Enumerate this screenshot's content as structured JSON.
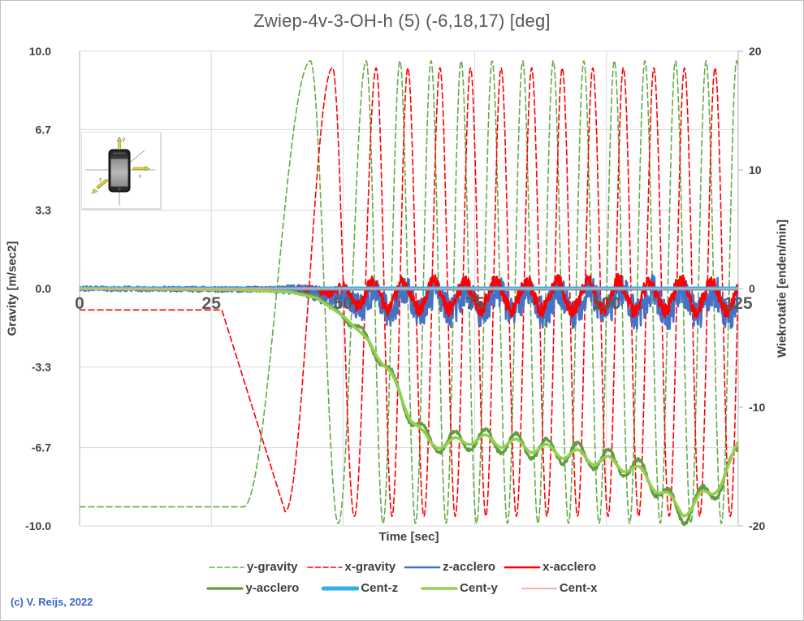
{
  "copyright": "(c) V. Reijs, 2022",
  "inset_icon": {
    "name": "phone-orientation-diagram",
    "axis_labels": {
      "x": "x",
      "y": "y",
      "z": "z"
    }
  },
  "chart_data": {
    "type": "line",
    "title": "Zwiep-4v-3-OH-h (5) (-6,18,17) [deg]",
    "xlabel": "Time [sec]",
    "ylabel_left": "Gravity [m/sec2]",
    "ylabel_right": "Wiekrotatie [enden/min]",
    "xlim": [
      0,
      125
    ],
    "ylim_left": [
      -10,
      10
    ],
    "ylim_right": [
      -20,
      20
    ],
    "grid": true,
    "legend_position": "bottom",
    "colors": {
      "grid": "#d9d9d9",
      "axis_line": "#bfbfbf",
      "tick_text": "#404040",
      "xtick_text": "#595959",
      "title_text": "#595959"
    },
    "x_ticks": [
      {
        "v": 0,
        "label": "0"
      },
      {
        "v": 25,
        "label": "25"
      },
      {
        "v": 50,
        "label": "50"
      },
      {
        "v": 75,
        "label": "75"
      },
      {
        "v": 100,
        "label": "100"
      },
      {
        "v": 125,
        "label": "125"
      }
    ],
    "left_ticks": [
      {
        "v": 10,
        "label": "10.0"
      },
      {
        "v": 6.7,
        "label": "6.7"
      },
      {
        "v": 3.3,
        "label": "3.3"
      },
      {
        "v": 0,
        "label": "0.0"
      },
      {
        "v": -3.3,
        "label": "-3.3"
      },
      {
        "v": -6.7,
        "label": "-6.7"
      },
      {
        "v": -10,
        "label": "-10.0"
      }
    ],
    "right_ticks": [
      {
        "v": 20,
        "label": "20"
      },
      {
        "v": 10,
        "label": "10"
      },
      {
        "v": 0,
        "label": "0"
      },
      {
        "v": -10,
        "label": "-10"
      },
      {
        "v": -20,
        "label": "-20"
      }
    ],
    "series": [
      {
        "name": "y-gravity",
        "axis": "left",
        "color": "#66ab45",
        "width": 1.6,
        "dash": "7 4",
        "dt": 0.12,
        "seed": 11,
        "base": [
          [
            0,
            -0.15
          ],
          [
            125,
            -0.15
          ]
        ],
        "osc": {
          "amp": [
            [
              0,
              9.05
            ],
            [
              31,
              9.05
            ],
            [
              43.8,
              9.75
            ],
            [
              125,
              9.75
            ]
          ],
          "phase": [
            [
              0,
              0.5
            ],
            [
              31,
              0.5
            ],
            [
              43.8,
              1
            ],
            [
              54.4,
              2
            ],
            [
              60.8,
              3
            ],
            [
              66.7,
              4
            ],
            [
              72.4,
              5
            ],
            [
              78.3,
              6
            ],
            [
              84.1,
              7
            ],
            [
              89.9,
              8
            ],
            [
              95.7,
              9
            ],
            [
              101.5,
              10
            ],
            [
              107.3,
              11
            ],
            [
              113.1,
              12
            ],
            [
              118.9,
              13
            ],
            [
              124.7,
              14
            ],
            [
              125,
              14.05
            ]
          ]
        }
      },
      {
        "name": "x-gravity",
        "axis": "left",
        "color": "#ff0000",
        "width": 1.6,
        "dash": "7 4",
        "dt": 0.12,
        "seed": 12,
        "base": [
          [
            0,
            -0.15
          ],
          [
            125,
            -0.15
          ]
        ],
        "osc": {
          "amp": [
            [
              0,
              0.75
            ],
            [
              27,
              0.75
            ],
            [
              39,
              9.25
            ],
            [
              48,
              9.45
            ],
            [
              125,
              9.45
            ]
          ],
          "phase": [
            [
              0,
              0.5
            ],
            [
              27,
              0.5
            ],
            [
              39,
              0.5
            ],
            [
              48,
              1
            ],
            [
              56.3,
              2
            ],
            [
              62.3,
              3
            ],
            [
              68.4,
              4
            ],
            [
              74.2,
              5
            ],
            [
              80,
              6
            ],
            [
              85.8,
              7
            ],
            [
              91.6,
              8
            ],
            [
              97.4,
              9
            ],
            [
              103.2,
              10
            ],
            [
              109,
              11
            ],
            [
              114.8,
              12
            ],
            [
              120.6,
              13
            ],
            [
              125,
              13.76
            ]
          ]
        }
      },
      {
        "name": "z-acclero",
        "axis": "left",
        "color": "#4472c4",
        "width": 2.6,
        "dt": 0.1,
        "seed": 23,
        "base": [
          [
            0,
            0
          ],
          [
            42,
            -0.05
          ],
          [
            48,
            -0.4
          ],
          [
            55,
            -0.55
          ],
          [
            125,
            -0.6
          ]
        ],
        "osc": {
          "amp": [
            [
              0,
              0
            ],
            [
              46,
              0
            ],
            [
              56,
              0.4
            ],
            [
              125,
              0.5
            ]
          ],
          "phase": [
            [
              46,
              0.3
            ],
            [
              125,
              13.8
            ]
          ]
        },
        "noise": [
          [
            0,
            0.1
          ],
          [
            35,
            0.12
          ],
          [
            42,
            0.22
          ],
          [
            50,
            0.5
          ],
          [
            58,
            0.65
          ],
          [
            125,
            0.72
          ]
        ]
      },
      {
        "name": "x-acclero",
        "axis": "left",
        "color": "#ff0000",
        "width": 2.6,
        "dt": 0.1,
        "seed": 37,
        "base": [
          [
            0,
            0
          ],
          [
            45,
            -0.05
          ],
          [
            52,
            -0.28
          ],
          [
            125,
            -0.33
          ]
        ],
        "osc": {
          "amp": [
            [
              0,
              0
            ],
            [
              46,
              0.05
            ],
            [
              54,
              0.55
            ],
            [
              125,
              0.65
            ]
          ],
          "phase": [
            [
              44,
              -0.98
            ],
            [
              125,
              12.87
            ]
          ]
        },
        "noise": [
          [
            0,
            0.05
          ],
          [
            40,
            0.08
          ],
          [
            50,
            0.22
          ],
          [
            58,
            0.3
          ],
          [
            125,
            0.33
          ]
        ]
      },
      {
        "name": "y-acclero",
        "axis": "left",
        "color": "#639b41",
        "width": 3.2,
        "dt": 0.15,
        "seed": 41,
        "base": [
          [
            0,
            0
          ],
          [
            30,
            -0.05
          ],
          [
            40,
            -0.1
          ],
          [
            45,
            -0.35
          ],
          [
            50,
            -1.1
          ],
          [
            53,
            -1.8
          ],
          [
            55,
            -2.25
          ],
          [
            57,
            -2.95
          ],
          [
            59,
            -3.65
          ],
          [
            61,
            -4.55
          ],
          [
            63,
            -5.45
          ],
          [
            65,
            -6.1
          ],
          [
            66.5,
            -6.45
          ],
          [
            70,
            -6.5
          ],
          [
            74,
            -6.35
          ],
          [
            78,
            -6.4
          ],
          [
            85,
            -6.65
          ],
          [
            90,
            -6.85
          ],
          [
            95,
            -7.0
          ],
          [
            100,
            -7.25
          ],
          [
            104,
            -7.45
          ],
          [
            107,
            -7.8
          ],
          [
            110,
            -8.4
          ],
          [
            113,
            -9.3
          ],
          [
            114.5,
            -9.5
          ],
          [
            116,
            -9.2
          ],
          [
            118,
            -8.85
          ],
          [
            120,
            -8.5
          ],
          [
            122,
            -8.1
          ],
          [
            123.5,
            -7.6
          ],
          [
            125,
            -6.9
          ]
        ],
        "osc": {
          "amp": [
            [
              0,
              0
            ],
            [
              48,
              0
            ],
            [
              52,
              0.22
            ],
            [
              58,
              0.3
            ],
            [
              64,
              0.38
            ],
            [
              70,
              0.45
            ],
            [
              125,
              0.5
            ]
          ],
          "phase": [
            [
              40,
              -6.325
            ],
            [
              125,
              8.205
            ]
          ]
        },
        "noise": [
          [
            0,
            0.03
          ],
          [
            45,
            0.06
          ],
          [
            125,
            0.08
          ]
        ]
      },
      {
        "name": "Cent-z",
        "axis": "right",
        "color": "#2db3e8",
        "width": 5,
        "dt": 1,
        "seed": 5,
        "base": [
          [
            0,
            0
          ],
          [
            125,
            0
          ]
        ]
      },
      {
        "name": "Cent-y",
        "axis": "right",
        "color": "#92d050",
        "width": 3.6,
        "dt": 0.15,
        "seed": 52,
        "base": [
          [
            0,
            0
          ],
          [
            30,
            -0.1
          ],
          [
            40,
            -0.3
          ],
          [
            45,
            -0.8
          ],
          [
            50,
            -2.3
          ],
          [
            53,
            -3.6
          ],
          [
            55,
            -4.5
          ],
          [
            57,
            -5.9
          ],
          [
            59,
            -7.3
          ],
          [
            61,
            -9.1
          ],
          [
            63,
            -10.9
          ],
          [
            65,
            -12.3
          ],
          [
            66.5,
            -13.0
          ],
          [
            70,
            -13.1
          ],
          [
            74,
            -12.7
          ],
          [
            78,
            -12.8
          ],
          [
            85,
            -13.3
          ],
          [
            90,
            -13.7
          ],
          [
            95,
            -14.1
          ],
          [
            100,
            -14.6
          ],
          [
            104,
            -15.0
          ],
          [
            107,
            -15.7
          ],
          [
            110,
            -16.9
          ],
          [
            113,
            -18.3
          ],
          [
            114.5,
            -18.7
          ],
          [
            116,
            -18.4
          ],
          [
            118,
            -17.7
          ],
          [
            120,
            -17.0
          ],
          [
            122,
            -16.1
          ],
          [
            123.5,
            -15.0
          ],
          [
            125,
            -13.1
          ]
        ],
        "osc": {
          "amp": [
            [
              0,
              0
            ],
            [
              52,
              0
            ],
            [
              60,
              0.4
            ],
            [
              125,
              0.55
            ]
          ],
          "phase": [
            [
              40,
              -6.325
            ],
            [
              125,
              8.205
            ]
          ]
        }
      },
      {
        "name": "Cent-x",
        "axis": "right",
        "color": "#f2a0a0",
        "width": 1.8,
        "dt": 1,
        "seed": 6,
        "base": [
          [
            0,
            0
          ],
          [
            125,
            0
          ]
        ]
      }
    ]
  }
}
